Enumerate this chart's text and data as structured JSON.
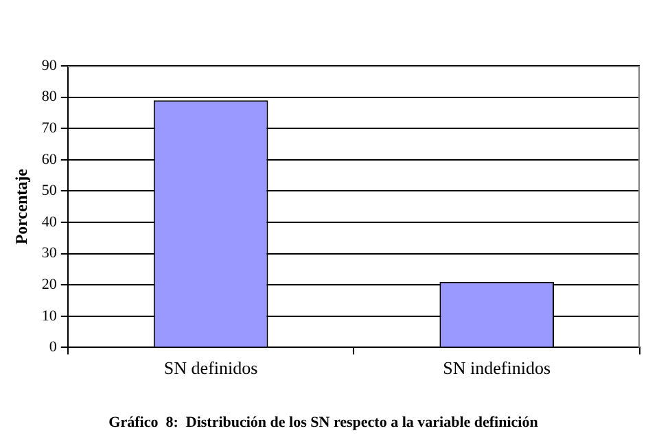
{
  "chart_data": {
    "type": "bar",
    "title": "Gráfico  8:  Distribución de los SN respecto a la variable definición",
    "ylabel": "Porcentaje",
    "categories": [
      "SN definidos",
      "SN indefinidos"
    ],
    "values": [
      79,
      21
    ],
    "color": "#9999ff",
    "ylim": [
      0,
      90
    ],
    "yticks": [
      0,
      10,
      20,
      30,
      40,
      50,
      60,
      70,
      80,
      90
    ],
    "grid": "y",
    "legend": false
  }
}
